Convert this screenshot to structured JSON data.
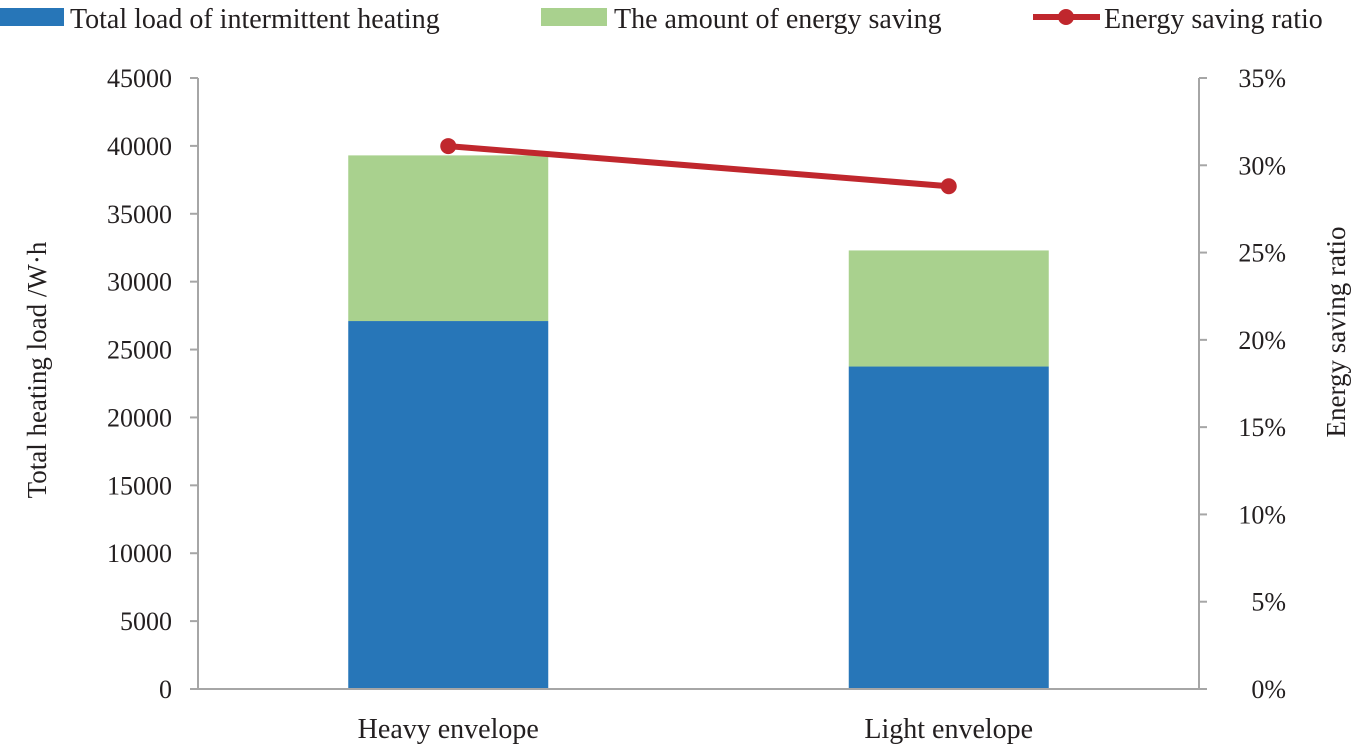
{
  "chart_data": {
    "type": "bar",
    "stacked": true,
    "categories": [
      "Heavy envelope",
      "Light envelope"
    ],
    "series": [
      {
        "name": "Total load of intermittent heating",
        "kind": "bar",
        "axis": "left",
        "color": "#2776b8",
        "values": [
          27100,
          23750
        ]
      },
      {
        "name": "The amount of energy saving",
        "kind": "bar",
        "axis": "left",
        "color": "#a9d18e",
        "values": [
          12200,
          8550
        ]
      },
      {
        "name": "Energy saving ratio",
        "kind": "line",
        "axis": "right",
        "color": "#c0272d",
        "values": [
          0.311,
          0.288
        ]
      }
    ],
    "ylabel": "Total heating load /W·h",
    "y2label": "Energy saving ratio",
    "ylim": [
      0,
      45000
    ],
    "y2lim": [
      0,
      0.35
    ],
    "yticks": [
      "0",
      "5000",
      "10000",
      "15000",
      "20000",
      "25000",
      "30000",
      "35000",
      "40000",
      "45000"
    ],
    "y2ticks": [
      "0%",
      "5%",
      "10%",
      "15%",
      "20%",
      "25%",
      "30%",
      "35%"
    ],
    "legend_position": "top",
    "grid": false
  }
}
